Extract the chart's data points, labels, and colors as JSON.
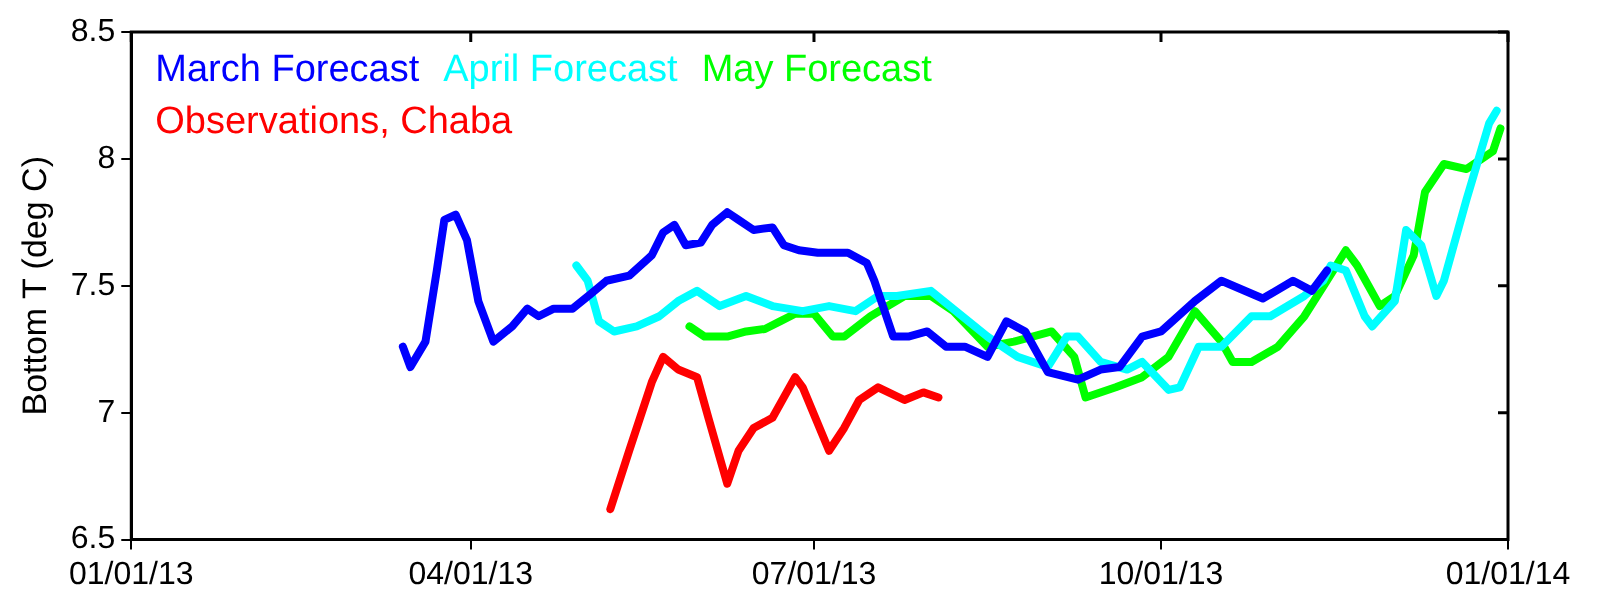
{
  "chart_data": {
    "type": "line",
    "ylabel": "Bottom T (deg C)",
    "legend": "top left",
    "marker": "none",
    "line_style": "solid",
    "grid": false,
    "xlim": [
      "2013-01-01",
      "2014-01-01"
    ],
    "xticks": [
      {
        "value": "2013-01-01",
        "label": "01/01/13"
      },
      {
        "value": "2013-04-01",
        "label": "04/01/13"
      },
      {
        "value": "2013-07-01",
        "label": "07/01/13"
      },
      {
        "value": "2013-10-01",
        "label": "10/01/13"
      },
      {
        "value": "2014-01-01",
        "label": "01/01/14"
      }
    ],
    "ylim": [
      6.5,
      8.5
    ],
    "yticks": [
      6.5,
      7,
      7.5,
      8,
      8.5
    ],
    "series": [
      {
        "name": "March Forecast",
        "color": "#0000ff",
        "x": [
          "2013-03-14",
          "2013-03-16",
          "2013-03-20",
          "2013-03-23",
          "2013-03-25",
          "2013-03-28",
          "2013-03-31",
          "2013-04-03",
          "2013-04-07",
          "2013-04-12",
          "2013-04-16",
          "2013-04-19",
          "2013-04-23",
          "2013-04-28",
          "2013-05-03",
          "2013-05-07",
          "2013-05-13",
          "2013-05-19",
          "2013-05-22",
          "2013-05-25",
          "2013-05-28",
          "2013-06-01",
          "2013-06-04",
          "2013-06-08",
          "2013-06-11",
          "2013-06-15",
          "2013-06-20",
          "2013-06-23",
          "2013-06-27",
          "2013-07-02",
          "2013-07-10",
          "2013-07-15",
          "2013-07-17",
          "2013-07-22",
          "2013-07-26",
          "2013-07-31",
          "2013-08-05",
          "2013-08-10",
          "2013-08-16",
          "2013-08-21",
          "2013-08-26",
          "2013-09-01",
          "2013-09-09",
          "2013-09-15",
          "2013-09-20",
          "2013-09-26",
          "2013-10-01",
          "2013-10-10",
          "2013-10-17",
          "2013-10-28",
          "2013-11-05",
          "2013-11-10",
          "2013-11-14"
        ],
        "values": [
          7.26,
          7.18,
          7.28,
          7.56,
          7.76,
          7.78,
          7.68,
          7.44,
          7.28,
          7.34,
          7.41,
          7.38,
          7.41,
          7.41,
          7.47,
          7.52,
          7.54,
          7.62,
          7.71,
          7.74,
          7.66,
          7.67,
          7.74,
          7.79,
          7.76,
          7.72,
          7.73,
          7.66,
          7.64,
          7.63,
          7.63,
          7.59,
          7.52,
          7.3,
          7.3,
          7.32,
          7.26,
          7.26,
          7.22,
          7.36,
          7.32,
          7.16,
          7.13,
          7.17,
          7.18,
          7.3,
          7.32,
          7.44,
          7.52,
          7.45,
          7.52,
          7.48,
          7.56
        ]
      },
      {
        "name": "April Forecast",
        "color": "#00ffff",
        "x": [
          "2013-04-29",
          "2013-05-02",
          "2013-05-05",
          "2013-05-09",
          "2013-05-15",
          "2013-05-21",
          "2013-05-26",
          "2013-05-31",
          "2013-06-06",
          "2013-06-13",
          "2013-06-20",
          "2013-06-28",
          "2013-07-05",
          "2013-07-12",
          "2013-07-18",
          "2013-07-23",
          "2013-08-01",
          "2013-08-06",
          "2013-08-16",
          "2013-08-24",
          "2013-09-01",
          "2013-09-06",
          "2013-09-09",
          "2013-09-15",
          "2013-09-22",
          "2013-09-26",
          "2013-10-03",
          "2013-10-06",
          "2013-10-11",
          "2013-10-17",
          "2013-10-25",
          "2013-10-30",
          "2013-11-08",
          "2013-11-13",
          "2013-11-15",
          "2013-11-19",
          "2013-11-24",
          "2013-11-26",
          "2013-12-02",
          "2013-12-05",
          "2013-12-09",
          "2013-12-13",
          "2013-12-15",
          "2013-12-21",
          "2013-12-27",
          "2013-12-29"
        ],
        "values": [
          7.58,
          7.52,
          7.36,
          7.32,
          7.34,
          7.38,
          7.44,
          7.48,
          7.42,
          7.46,
          7.42,
          7.4,
          7.42,
          7.4,
          7.46,
          7.46,
          7.48,
          7.42,
          7.3,
          7.22,
          7.18,
          7.3,
          7.3,
          7.2,
          7.17,
          7.2,
          7.09,
          7.1,
          7.26,
          7.26,
          7.38,
          7.38,
          7.46,
          7.52,
          7.58,
          7.56,
          7.38,
          7.34,
          7.44,
          7.72,
          7.66,
          7.46,
          7.52,
          7.84,
          8.14,
          8.19
        ]
      },
      {
        "name": "May Forecast",
        "color": "#00ff00",
        "x": [
          "2013-05-29",
          "2013-06-02",
          "2013-06-08",
          "2013-06-13",
          "2013-06-18",
          "2013-06-22",
          "2013-06-26",
          "2013-07-01",
          "2013-07-06",
          "2013-07-09",
          "2013-07-16",
          "2013-07-25",
          "2013-08-01",
          "2013-08-07",
          "2013-08-16",
          "2013-08-23",
          "2013-09-02",
          "2013-09-08",
          "2013-09-11",
          "2013-09-19",
          "2013-09-26",
          "2013-10-03",
          "2013-10-10",
          "2013-10-17",
          "2013-10-20",
          "2013-10-25",
          "2013-11-01",
          "2013-11-08",
          "2013-11-14",
          "2013-11-19",
          "2013-11-22",
          "2013-11-25",
          "2013-11-28",
          "2013-12-02",
          "2013-12-07",
          "2013-12-10",
          "2013-12-15",
          "2013-12-21",
          "2013-12-25",
          "2013-12-28",
          "2013-12-30"
        ],
        "values": [
          7.34,
          7.3,
          7.3,
          7.32,
          7.33,
          7.36,
          7.39,
          7.39,
          7.3,
          7.3,
          7.38,
          7.46,
          7.46,
          7.4,
          7.26,
          7.28,
          7.32,
          7.22,
          7.06,
          7.1,
          7.14,
          7.22,
          7.4,
          7.28,
          7.2,
          7.2,
          7.26,
          7.38,
          7.52,
          7.64,
          7.58,
          7.5,
          7.42,
          7.46,
          7.62,
          7.87,
          7.98,
          7.96,
          8,
          8.03,
          8.12
        ]
      },
      {
        "name": "Observations, Chaba",
        "color": "#ff0000",
        "x": [
          "2013-05-08",
          "2013-05-13",
          "2013-05-19",
          "2013-05-22",
          "2013-05-26",
          "2013-05-31",
          "2013-06-03",
          "2013-06-08",
          "2013-06-11",
          "2013-06-15",
          "2013-06-20",
          "2013-06-26",
          "2013-06-28",
          "2013-07-05",
          "2013-07-09",
          "2013-07-13",
          "2013-07-18",
          "2013-07-25",
          "2013-07-30",
          "2013-08-03"
        ],
        "values": [
          6.62,
          6.85,
          7.12,
          7.22,
          7.17,
          7.14,
          6.98,
          6.72,
          6.85,
          6.94,
          6.98,
          7.14,
          7.1,
          6.85,
          6.94,
          7.05,
          7.1,
          7.05,
          7.08,
          7.06
        ]
      }
    ]
  }
}
